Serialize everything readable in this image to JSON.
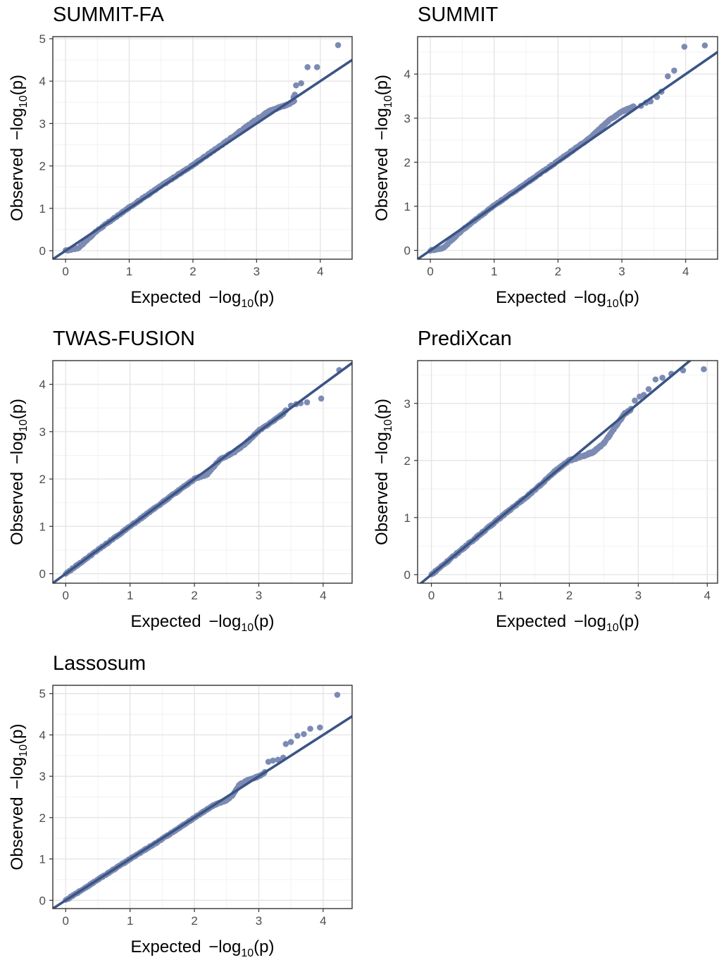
{
  "chart_data": [
    {
      "type": "scatter",
      "title": "SUMMIT-FA",
      "xlabel": {
        "prefix": "Expected ",
        "minus": "−",
        "log": "log",
        "base": "10",
        "suffix": "(p)"
      },
      "ylabel": {
        "prefix": "Observed ",
        "minus": "−",
        "log": "log",
        "base": "10",
        "suffix": "(p)"
      },
      "xlim": [
        -0.2,
        4.5
      ],
      "ylim": [
        -0.2,
        5.05
      ],
      "xticks": [
        0,
        1,
        2,
        3,
        4
      ],
      "yticks": [
        0,
        1,
        2,
        3,
        4,
        5
      ],
      "grid": true,
      "reference_line": "y = x",
      "trend": [
        [
          0,
          0
        ],
        [
          0.2,
          0.06
        ],
        [
          0.5,
          0.48
        ],
        [
          1,
          1.02
        ],
        [
          1.5,
          1.53
        ],
        [
          2,
          2.02
        ],
        [
          2.5,
          2.55
        ],
        [
          3,
          3.1
        ],
        [
          3.2,
          3.3
        ],
        [
          3.5,
          3.45
        ],
        [
          3.6,
          3.55
        ]
      ],
      "points": [
        [
          3.48,
          3.45
        ],
        [
          3.53,
          3.48
        ],
        [
          3.58,
          3.62
        ],
        [
          3.6,
          3.68
        ],
        [
          3.62,
          3.9
        ],
        [
          3.7,
          3.95
        ],
        [
          3.8,
          4.33
        ],
        [
          3.95,
          4.33
        ],
        [
          4.28,
          4.85
        ]
      ]
    },
    {
      "type": "scatter",
      "title": "SUMMIT",
      "xlabel": {
        "prefix": "Expected ",
        "minus": "−",
        "log": "log",
        "base": "10",
        "suffix": "(p)"
      },
      "ylabel": {
        "prefix": "Observed ",
        "minus": "−",
        "log": "log",
        "base": "10",
        "suffix": "(p)"
      },
      "xlim": [
        -0.2,
        4.5
      ],
      "ylim": [
        -0.2,
        4.85
      ],
      "xticks": [
        0,
        1,
        2,
        3,
        4
      ],
      "yticks": [
        0,
        1,
        2,
        3,
        4
      ],
      "grid": true,
      "reference_line": "y = x",
      "trend": [
        [
          0,
          0
        ],
        [
          0.2,
          0.05
        ],
        [
          0.5,
          0.46
        ],
        [
          1,
          1.02
        ],
        [
          1.5,
          1.52
        ],
        [
          2,
          2.03
        ],
        [
          2.5,
          2.55
        ],
        [
          2.8,
          2.95
        ],
        [
          3,
          3.15
        ],
        [
          3.2,
          3.27
        ]
      ],
      "points": [
        [
          3.3,
          3.28
        ],
        [
          3.38,
          3.35
        ],
        [
          3.45,
          3.38
        ],
        [
          3.55,
          3.48
        ],
        [
          3.62,
          3.6
        ],
        [
          3.72,
          3.95
        ],
        [
          3.82,
          4.08
        ],
        [
          3.98,
          4.62
        ],
        [
          4.3,
          4.65
        ]
      ]
    },
    {
      "type": "scatter",
      "title": "TWAS-FUSION",
      "xlabel": {
        "prefix": "Expected ",
        "minus": "−",
        "log": "log",
        "base": "10",
        "suffix": "(p)"
      },
      "ylabel": {
        "prefix": "Observed ",
        "minus": "−",
        "log": "log",
        "base": "10",
        "suffix": "(p)"
      },
      "xlim": [
        -0.2,
        4.45
      ],
      "ylim": [
        -0.2,
        4.5
      ],
      "xticks": [
        0,
        1,
        2,
        3,
        4
      ],
      "yticks": [
        0,
        1,
        2,
        3,
        4
      ],
      "grid": true,
      "reference_line": "y = x",
      "trend": [
        [
          0,
          0
        ],
        [
          0.5,
          0.5
        ],
        [
          1,
          1.0
        ],
        [
          1.5,
          1.5
        ],
        [
          2,
          2.0
        ],
        [
          2.2,
          2.1
        ],
        [
          2.4,
          2.42
        ],
        [
          2.6,
          2.55
        ],
        [
          2.8,
          2.75
        ],
        [
          3,
          3.02
        ],
        [
          3.2,
          3.2
        ],
        [
          3.4,
          3.4
        ]
      ],
      "points": [
        [
          3.42,
          3.45
        ],
        [
          3.5,
          3.55
        ],
        [
          3.58,
          3.58
        ],
        [
          3.65,
          3.6
        ],
        [
          3.75,
          3.62
        ],
        [
          3.97,
          3.7
        ],
        [
          4.25,
          4.3
        ]
      ]
    },
    {
      "type": "scatter",
      "title": "PrediXcan",
      "xlabel": {
        "prefix": "Expected ",
        "minus": "−",
        "log": "log",
        "base": "10",
        "suffix": "(p)"
      },
      "ylabel": {
        "prefix": "Observed ",
        "minus": "−",
        "log": "log",
        "base": "10",
        "suffix": "(p)"
      },
      "xlim": [
        -0.2,
        4.15
      ],
      "ylim": [
        -0.15,
        3.75
      ],
      "xticks": [
        0,
        1,
        2,
        3,
        4
      ],
      "yticks": [
        0,
        1,
        2,
        3
      ],
      "grid": true,
      "reference_line": "y = x",
      "trend": [
        [
          0,
          0
        ],
        [
          0.5,
          0.5
        ],
        [
          1,
          1.0
        ],
        [
          1.5,
          1.48
        ],
        [
          1.8,
          1.82
        ],
        [
          2,
          2.0
        ],
        [
          2.2,
          2.08
        ],
        [
          2.35,
          2.15
        ],
        [
          2.5,
          2.3
        ],
        [
          2.65,
          2.55
        ],
        [
          2.8,
          2.82
        ],
        [
          2.9,
          2.9
        ]
      ],
      "points": [
        [
          2.95,
          3.05
        ],
        [
          3.02,
          3.12
        ],
        [
          3.08,
          3.15
        ],
        [
          3.15,
          3.25
        ],
        [
          3.25,
          3.42
        ],
        [
          3.35,
          3.45
        ],
        [
          3.48,
          3.52
        ],
        [
          3.65,
          3.58
        ],
        [
          3.95,
          3.6
        ]
      ]
    },
    {
      "type": "scatter",
      "title": "Lassosum",
      "xlabel": {
        "prefix": "Expected ",
        "minus": "−",
        "log": "log",
        "base": "10",
        "suffix": "(p)"
      },
      "ylabel": {
        "prefix": "Observed ",
        "minus": "−",
        "log": "log",
        "base": "10",
        "suffix": "(p)"
      },
      "xlim": [
        -0.2,
        4.45
      ],
      "ylim": [
        -0.2,
        5.2
      ],
      "xticks": [
        0,
        1,
        2,
        3,
        4
      ],
      "yticks": [
        0,
        1,
        2,
        3,
        4,
        5
      ],
      "grid": true,
      "reference_line": "y = x",
      "trend": [
        [
          0,
          0
        ],
        [
          0.5,
          0.5
        ],
        [
          1,
          1.0
        ],
        [
          1.5,
          1.48
        ],
        [
          2,
          2.0
        ],
        [
          2.3,
          2.3
        ],
        [
          2.5,
          2.42
        ],
        [
          2.6,
          2.55
        ],
        [
          2.7,
          2.8
        ],
        [
          2.85,
          2.92
        ],
        [
          3,
          3.0
        ],
        [
          3.1,
          3.1
        ]
      ],
      "points": [
        [
          3.15,
          3.35
        ],
        [
          3.22,
          3.38
        ],
        [
          3.3,
          3.4
        ],
        [
          3.38,
          3.45
        ],
        [
          3.42,
          3.78
        ],
        [
          3.5,
          3.83
        ],
        [
          3.6,
          3.98
        ],
        [
          3.7,
          4.02
        ],
        [
          3.8,
          4.15
        ],
        [
          3.95,
          4.18
        ],
        [
          4.22,
          4.97
        ]
      ]
    }
  ],
  "colors": {
    "points": "#7c8bb3",
    "reference_line": "#3b5486",
    "grid_major": "#e5e5e5",
    "grid_minor": "#f2f2f2",
    "panel_border": "#333333"
  }
}
